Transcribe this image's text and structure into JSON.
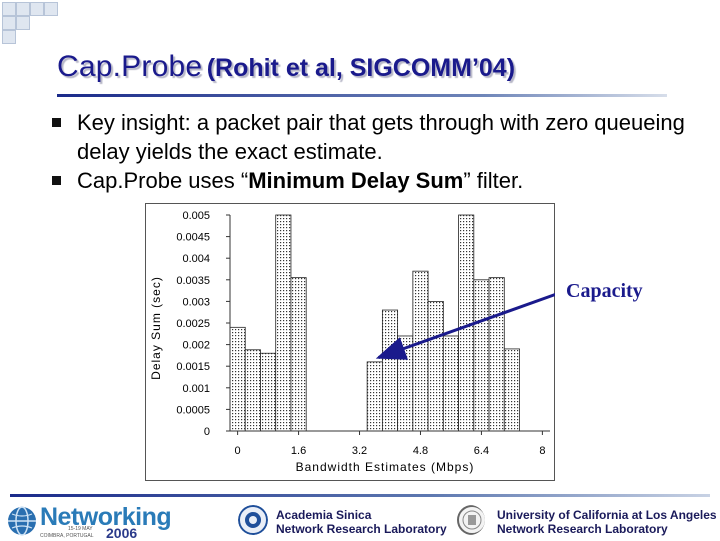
{
  "slide": {
    "title_main": "Cap.Probe",
    "title_sub": "(Rohit et al, SIGCOMM’04)",
    "bullets": [
      {
        "text_before": "Key insight: a packet pair that gets through with zero queueing delay yields the exact estimate.",
        "strong": "",
        "text_after": ""
      },
      {
        "text_before": "Cap.Probe uses “",
        "strong": "Minimum Delay Sum",
        "text_after": "” filter."
      }
    ],
    "annotation": "Capacity",
    "annotation_color": "#1a1a8c"
  },
  "footer": {
    "networking_word": "Networking",
    "networking_year": "2006",
    "networking_dates": "15-19 MAY",
    "networking_place": "COIMBRA, PORTUGAL",
    "inst1_line1": "Academia Sinica",
    "inst1_line2": "Network Research Laboratory",
    "inst2_line1": "University of California at Los Angeles",
    "inst2_line2": "Network Research Laboratory"
  },
  "chart_data": {
    "type": "bar",
    "xlabel": "Bandwidth Estimates (Mbps)",
    "ylabel": "Delay Sum (sec)",
    "xlim": [
      -0.2,
      8.2
    ],
    "ylim": [
      0,
      0.005
    ],
    "x_ticks": [
      "0",
      "1.6",
      "3.2",
      "4.8",
      "6.4",
      "8"
    ],
    "y_ticks": [
      "0",
      "0.0005",
      "0.001",
      "0.0015",
      "0.002",
      "0.0025",
      "0.003",
      "0.0035",
      "0.004",
      "0.0045",
      "0.005"
    ],
    "bin_width": 0.4,
    "bins_x": [
      0,
      0.4,
      0.8,
      1.2,
      1.6,
      2.0,
      2.4,
      2.8,
      3.2,
      3.6,
      4.0,
      4.4,
      4.8,
      5.2,
      5.6,
      6.0,
      6.4,
      6.8,
      7.2,
      7.6,
      8.0
    ],
    "values": [
      0.0024,
      0.00188,
      0.0018,
      0.005,
      0.00355,
      0,
      0,
      0,
      0,
      0.0016,
      0.0028,
      0.0022,
      0.0037,
      0.003,
      0.0022,
      0.005,
      0.0035,
      0.00355,
      0.0019,
      0,
      0
    ],
    "arrow_target_x": 3.7,
    "arrow_target_y": 0.0017,
    "grid": false,
    "legend": "none"
  }
}
